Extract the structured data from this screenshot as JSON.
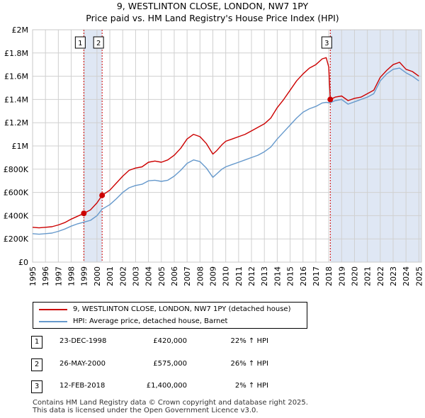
{
  "title_lines": [
    "9, WESTLINTON CLOSE, LONDON, NW7 1PY",
    "Price paid vs. HM Land Registry's House Price Index (HPI)"
  ],
  "colors": {
    "property": "#cc0000",
    "hpi": "#6699cc",
    "shade": "#dfe7f4",
    "marker_line": "#cc0000"
  },
  "chart_data": {
    "type": "line",
    "title": "9, WESTLINTON CLOSE, LONDON, NW7 1PY — Price paid vs. HM Land Registry's House Price Index (HPI)",
    "xlabel": "",
    "ylabel": "",
    "xlim": [
      1995.0,
      2025.2
    ],
    "ylim": [
      0,
      2000000
    ],
    "grid": true,
    "x_ticks": [
      "1995",
      "1996",
      "1997",
      "1998",
      "1999",
      "2000",
      "2001",
      "2002",
      "2003",
      "2004",
      "2005",
      "2006",
      "2007",
      "2008",
      "2009",
      "2010",
      "2011",
      "2012",
      "2013",
      "2014",
      "2015",
      "2016",
      "2017",
      "2018",
      "2019",
      "2020",
      "2021",
      "2022",
      "2023",
      "2024",
      "2025"
    ],
    "y_ticks": [
      {
        "value": 0,
        "label": "£0"
      },
      {
        "value": 200000,
        "label": "£200K"
      },
      {
        "value": 400000,
        "label": "£400K"
      },
      {
        "value": 600000,
        "label": "£600K"
      },
      {
        "value": 800000,
        "label": "£800K"
      },
      {
        "value": 1000000,
        "label": "£1M"
      },
      {
        "value": 1200000,
        "label": "£1.2M"
      },
      {
        "value": 1400000,
        "label": "£1.4M"
      },
      {
        "value": 1600000,
        "label": "£1.6M"
      },
      {
        "value": 1800000,
        "label": "£1.8M"
      },
      {
        "value": 2000000,
        "label": "£2M"
      }
    ],
    "shaded_ranges": [
      [
        1998.98,
        2000.4
      ],
      [
        2018.12,
        2025.2
      ]
    ],
    "series": [
      {
        "name": "9, WESTLINTON CLOSE, LONDON, NW7 1PY (detached house)",
        "color": "#cc0000",
        "x": [
          1995.0,
          1995.5,
          1996.0,
          1996.5,
          1997.0,
          1997.5,
          1998.0,
          1998.5,
          1998.98,
          1999.5,
          2000.0,
          2000.4,
          2001.0,
          2001.5,
          2002.0,
          2002.5,
          2003.0,
          2003.5,
          2004.0,
          2004.5,
          2005.0,
          2005.5,
          2006.0,
          2006.5,
          2007.0,
          2007.5,
          2008.0,
          2008.5,
          2009.0,
          2009.3,
          2009.7,
          2010.0,
          2010.5,
          2011.0,
          2011.5,
          2012.0,
          2012.5,
          2013.0,
          2013.5,
          2014.0,
          2014.5,
          2015.0,
          2015.5,
          2016.0,
          2016.5,
          2017.0,
          2017.5,
          2017.8,
          2018.0,
          2018.12,
          2018.5,
          2019.0,
          2019.5,
          2020.0,
          2020.5,
          2021.0,
          2021.5,
          2022.0,
          2022.5,
          2023.0,
          2023.5,
          2024.0,
          2024.5,
          2025.0
        ],
        "y": [
          300000,
          295000,
          300000,
          305000,
          320000,
          340000,
          370000,
          395000,
          420000,
          450000,
          510000,
          575000,
          620000,
          680000,
          740000,
          790000,
          810000,
          820000,
          860000,
          870000,
          860000,
          880000,
          920000,
          980000,
          1060000,
          1100000,
          1080000,
          1020000,
          930000,
          960000,
          1010000,
          1040000,
          1060000,
          1080000,
          1100000,
          1130000,
          1160000,
          1190000,
          1240000,
          1330000,
          1400000,
          1480000,
          1560000,
          1620000,
          1670000,
          1700000,
          1750000,
          1760000,
          1680000,
          1400000,
          1420000,
          1430000,
          1390000,
          1410000,
          1420000,
          1450000,
          1480000,
          1590000,
          1650000,
          1700000,
          1720000,
          1660000,
          1640000,
          1600000
        ]
      },
      {
        "name": "HPI: Average price, detached house, Barnet",
        "color": "#6699cc",
        "x": [
          1995.0,
          1995.5,
          1996.0,
          1996.5,
          1997.0,
          1997.5,
          1998.0,
          1998.5,
          1998.98,
          1999.5,
          2000.0,
          2000.4,
          2001.0,
          2001.5,
          2002.0,
          2002.5,
          2003.0,
          2003.5,
          2004.0,
          2004.5,
          2005.0,
          2005.5,
          2006.0,
          2006.5,
          2007.0,
          2007.5,
          2008.0,
          2008.5,
          2009.0,
          2009.3,
          2009.7,
          2010.0,
          2010.5,
          2011.0,
          2011.5,
          2012.0,
          2012.5,
          2013.0,
          2013.5,
          2014.0,
          2014.5,
          2015.0,
          2015.5,
          2016.0,
          2016.5,
          2017.0,
          2017.5,
          2017.8,
          2018.0,
          2018.12,
          2018.5,
          2019.0,
          2019.5,
          2020.0,
          2020.5,
          2021.0,
          2021.5,
          2022.0,
          2022.5,
          2023.0,
          2023.5,
          2024.0,
          2024.5,
          2025.0
        ],
        "y": [
          245000,
          240000,
          245000,
          250000,
          265000,
          285000,
          310000,
          330000,
          344000,
          360000,
          400000,
          456000,
          495000,
          545000,
          600000,
          640000,
          660000,
          670000,
          700000,
          705000,
          695000,
          705000,
          740000,
          790000,
          850000,
          880000,
          865000,
          810000,
          730000,
          760000,
          800000,
          820000,
          840000,
          860000,
          880000,
          900000,
          920000,
          950000,
          990000,
          1060000,
          1120000,
          1180000,
          1240000,
          1290000,
          1320000,
          1340000,
          1370000,
          1375000,
          1372000,
          1372000,
          1390000,
          1400000,
          1360000,
          1380000,
          1400000,
          1420000,
          1450000,
          1560000,
          1620000,
          1660000,
          1670000,
          1630000,
          1600000,
          1560000
        ]
      }
    ],
    "transactions": [
      {
        "num": "1",
        "x": 1998.98,
        "y": 420000
      },
      {
        "num": "2",
        "x": 2000.4,
        "y": 575000
      },
      {
        "num": "3",
        "x": 2018.12,
        "y": 1400000
      }
    ]
  },
  "legend": {
    "property_label": "9, WESTLINTON CLOSE, LONDON, NW7 1PY (detached house)",
    "hpi_label": "HPI: Average price, detached house, Barnet"
  },
  "transactions_table": [
    {
      "num": "1",
      "date": "23-DEC-1998",
      "price": "£420,000",
      "hpi": "22% ↑ HPI"
    },
    {
      "num": "2",
      "date": "26-MAY-2000",
      "price": "£575,000",
      "hpi": "26% ↑ HPI"
    },
    {
      "num": "3",
      "date": "12-FEB-2018",
      "price": "£1,400,000",
      "hpi": "2% ↑ HPI"
    }
  ],
  "footer": {
    "line1": "Contains HM Land Registry data © Crown copyright and database right 2025.",
    "line2": "This data is licensed under the Open Government Licence v3.0."
  }
}
